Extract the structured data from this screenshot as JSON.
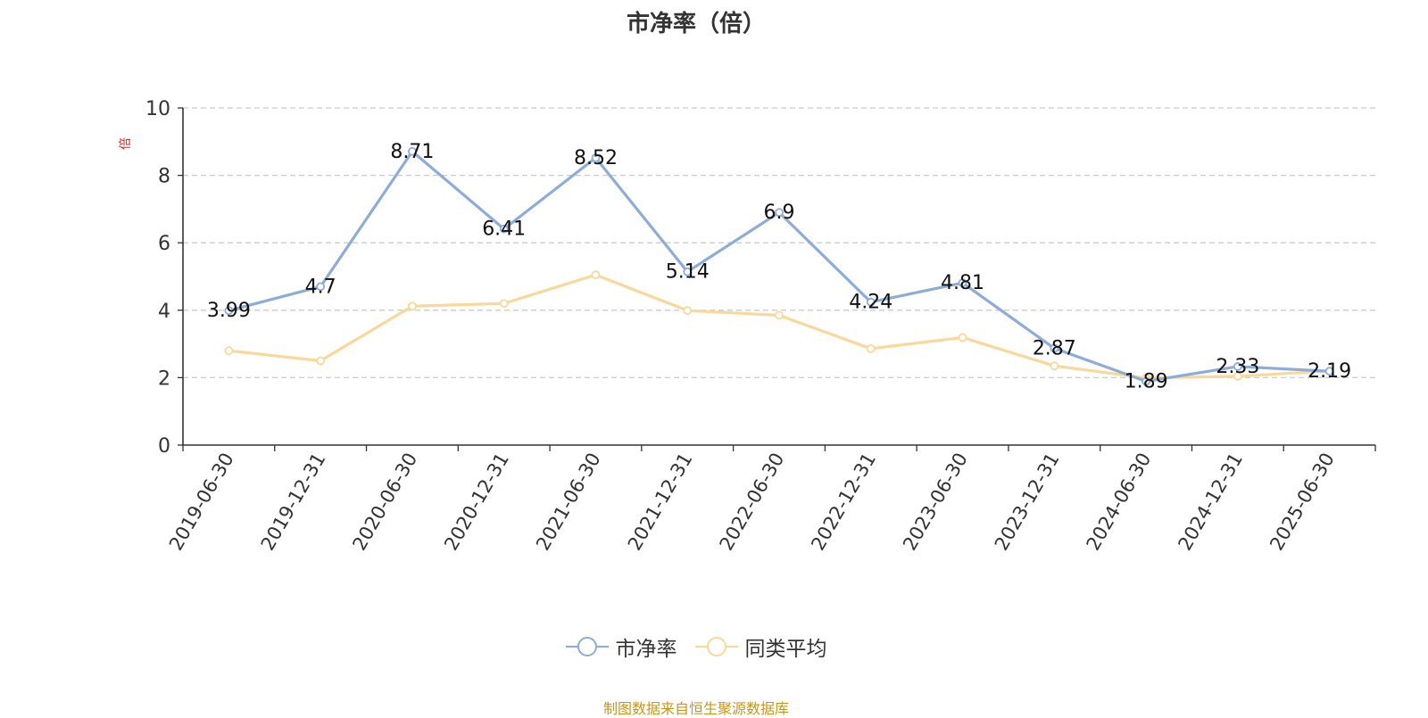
{
  "chart_data": {
    "type": "line",
    "title": "市净率（倍）",
    "ylabel": "倍",
    "xlabel": "",
    "ylim": [
      0,
      10
    ],
    "yticks": [
      0,
      2,
      4,
      6,
      8,
      10
    ],
    "grid": true,
    "legend_position": "bottom",
    "categories": [
      "2019-06-30",
      "2019-12-31",
      "2020-06-30",
      "2020-12-31",
      "2021-06-30",
      "2021-12-31",
      "2022-06-30",
      "2022-12-31",
      "2023-06-30",
      "2023-12-31",
      "2024-06-30",
      "2024-12-31",
      "2025-06-30"
    ],
    "series": [
      {
        "name": "市净率",
        "color": "#8eacd8",
        "values": [
          3.99,
          4.7,
          8.71,
          6.41,
          8.52,
          5.14,
          6.9,
          4.24,
          4.81,
          2.87,
          1.89,
          2.33,
          2.19
        ],
        "data_labels": [
          "3.99",
          "4.7",
          "8.71",
          "6.41",
          "8.52",
          "5.14",
          "6.9",
          "4.24",
          "4.81",
          "2.87",
          "1.89",
          "2.33",
          "2.19"
        ]
      },
      {
        "name": "同类平均",
        "color": "#fad89a",
        "values": [
          2.8,
          2.5,
          4.12,
          4.2,
          5.05,
          3.99,
          3.85,
          2.86,
          3.19,
          2.35,
          1.99,
          2.04,
          2.2
        ]
      }
    ]
  },
  "footer": {
    "source": "制图数据来自恒生聚源数据库"
  },
  "colors": {
    "axis": "#333333",
    "grid": "#cccccc",
    "source": "#c8951b",
    "ylabel": "#e02020"
  }
}
